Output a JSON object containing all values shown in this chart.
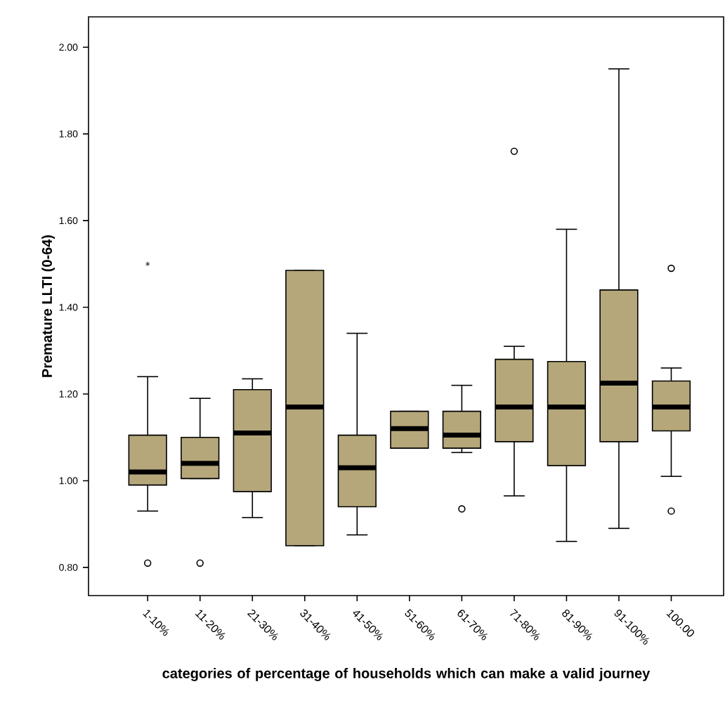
{
  "chart_data": {
    "type": "box",
    "xlabel": "categories of percentage of households which can make a valid journey",
    "ylabel": "Premature LLTI (0-64)",
    "categories": [
      "1-10%",
      "11-20%",
      "21-30%",
      "31-40%",
      "41-50%",
      "51-60%",
      "61-70%",
      "71-80%",
      "81-90%",
      "91-100%",
      "100.00"
    ],
    "color": "#b5a77a",
    "boxes": [
      {
        "low": 0.93,
        "q1": 0.99,
        "median": 1.02,
        "q3": 1.105,
        "high": 1.24,
        "outliers": [
          0.81,
          1.5
        ]
      },
      {
        "low": 1.005,
        "q1": 1.005,
        "median": 1.04,
        "q3": 1.1,
        "high": 1.19,
        "outliers": [
          0.81
        ]
      },
      {
        "low": 0.915,
        "q1": 0.975,
        "median": 1.11,
        "q3": 1.21,
        "high": 1.235
      },
      {
        "low": 0.85,
        "q1": 0.85,
        "median": 1.17,
        "q3": 1.485,
        "high": 1.485
      },
      {
        "low": 0.875,
        "q1": 0.94,
        "median": 1.03,
        "q3": 1.105,
        "high": 1.34
      },
      {
        "low": 1.075,
        "q1": 1.075,
        "median": 1.12,
        "q3": 1.16,
        "high": 1.16
      },
      {
        "low": 1.065,
        "q1": 1.075,
        "median": 1.105,
        "q3": 1.16,
        "high": 1.22,
        "outliers": [
          0.935
        ]
      },
      {
        "low": 0.965,
        "q1": 1.09,
        "median": 1.17,
        "q3": 1.28,
        "high": 1.31,
        "outliers": [
          1.76
        ]
      },
      {
        "low": 0.86,
        "q1": 1.035,
        "median": 1.17,
        "q3": 1.275,
        "high": 1.58
      },
      {
        "low": 0.89,
        "q1": 1.09,
        "median": 1.225,
        "q3": 1.44,
        "high": 1.95
      },
      {
        "low": 1.01,
        "q1": 1.115,
        "median": 1.17,
        "q3": 1.23,
        "high": 1.26,
        "outliers": [
          0.93,
          1.49
        ]
      }
    ],
    "ylim": [
      0.735,
      2.07
    ],
    "yticks": [
      {
        "value": 0.8,
        "label": "0.80"
      },
      {
        "value": 1.0,
        "label": "1.00"
      },
      {
        "value": 1.2,
        "label": "1.20"
      },
      {
        "value": 1.4,
        "label": "1.40"
      },
      {
        "value": 1.6,
        "label": "1.60"
      },
      {
        "value": 1.8,
        "label": "1.80"
      },
      {
        "value": 2.0,
        "label": "2.00"
      }
    ],
    "grid": false
  }
}
